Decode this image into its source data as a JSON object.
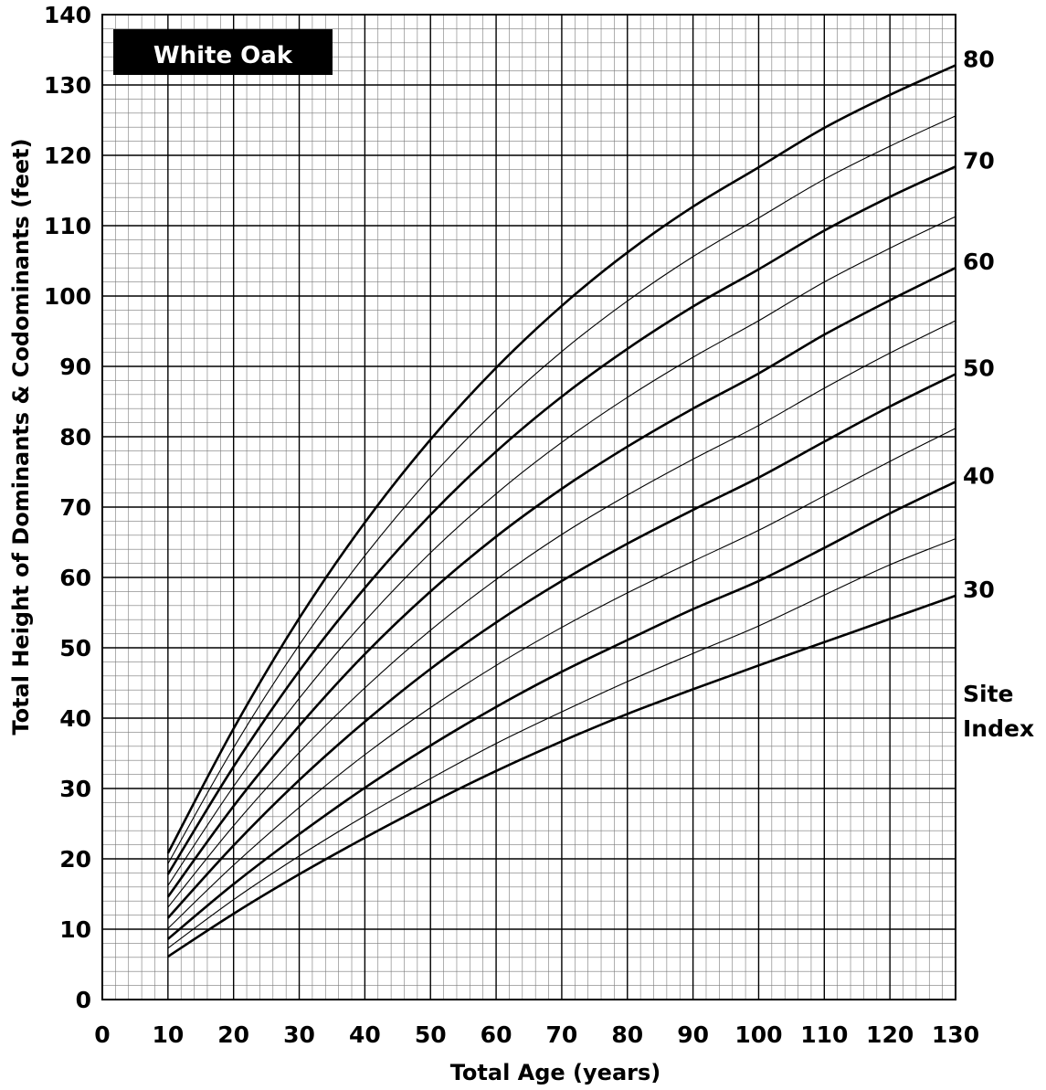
{
  "chart_data": {
    "type": "line",
    "title": "White Oak",
    "xlabel": "Total Age (years)",
    "ylabel": "Total Height of Dominants & Codominants (feet)",
    "xlim": [
      0,
      130
    ],
    "ylim": [
      0,
      140
    ],
    "x_ticks": [
      "0",
      "10",
      "20",
      "30",
      "40",
      "50",
      "60",
      "70",
      "80",
      "90",
      "100",
      "110",
      "120",
      "130"
    ],
    "y_ticks": [
      "0",
      "10",
      "20",
      "30",
      "40",
      "50",
      "60",
      "70",
      "80",
      "90",
      "100",
      "110",
      "120",
      "130",
      "140"
    ],
    "grid": true,
    "legend_title": [
      "Site",
      "Index"
    ],
    "x": [
      10,
      20,
      30,
      40,
      50,
      60,
      70,
      80,
      90,
      100,
      110,
      120,
      130
    ],
    "series": [
      {
        "name": "80",
        "labeled": true,
        "values": [
          20.8,
          38.5,
          54.2,
          67.8,
          79.6,
          89.8,
          98.6,
          106.2,
          112.7,
          118.3,
          123.9,
          128.6,
          132.8
        ]
      },
      {
        "name": "75",
        "labeled": false,
        "values": [
          19.3,
          35.8,
          50.4,
          63.1,
          74.2,
          83.8,
          92.1,
          99.3,
          105.6,
          111.1,
          116.6,
          121.3,
          125.6
        ]
      },
      {
        "name": "70",
        "labeled": true,
        "values": [
          17.8,
          33.1,
          46.7,
          58.5,
          68.9,
          77.9,
          85.7,
          92.5,
          98.5,
          103.8,
          109.3,
          114.1,
          118.4
        ]
      },
      {
        "name": "65",
        "labeled": false,
        "values": [
          16.2,
          30.3,
          42.8,
          53.8,
          63.5,
          71.9,
          79.2,
          85.6,
          91.3,
          96.5,
          102.0,
          106.8,
          111.3
        ]
      },
      {
        "name": "60",
        "labeled": true,
        "values": [
          14.6,
          27.5,
          38.9,
          49.1,
          58.0,
          65.8,
          72.6,
          78.6,
          84.0,
          89.0,
          94.5,
          99.4,
          104.0
        ]
      },
      {
        "name": "55",
        "labeled": false,
        "values": [
          13.1,
          24.7,
          35.1,
          44.3,
          52.5,
          59.7,
          66.1,
          71.7,
          76.8,
          81.6,
          86.9,
          91.9,
          96.5
        ]
      },
      {
        "name": "50",
        "labeled": true,
        "values": [
          11.6,
          21.9,
          31.2,
          39.5,
          47.0,
          53.6,
          59.5,
          64.8,
          69.6,
          74.2,
          79.3,
          84.3,
          88.9
        ]
      },
      {
        "name": "45",
        "labeled": false,
        "values": [
          10.1,
          19.1,
          27.3,
          34.8,
          41.5,
          47.5,
          52.9,
          57.8,
          62.3,
          66.7,
          71.6,
          76.5,
          81.2
        ]
      },
      {
        "name": "40",
        "labeled": true,
        "values": [
          8.6,
          16.4,
          23.5,
          30.1,
          36.1,
          41.6,
          46.6,
          51.1,
          55.5,
          59.5,
          64.2,
          69.1,
          73.6
        ]
      },
      {
        "name": "35",
        "labeled": false,
        "values": [
          7.3,
          14.2,
          20.4,
          26.1,
          31.4,
          36.4,
          40.9,
          45.2,
          49.2,
          53.1,
          57.5,
          61.8,
          65.5
        ]
      },
      {
        "name": "30",
        "labeled": true,
        "values": [
          6.1,
          12.2,
          17.8,
          23.0,
          27.9,
          32.5,
          36.7,
          40.6,
          44.1,
          47.5,
          50.8,
          54.1,
          57.4
        ]
      }
    ]
  }
}
